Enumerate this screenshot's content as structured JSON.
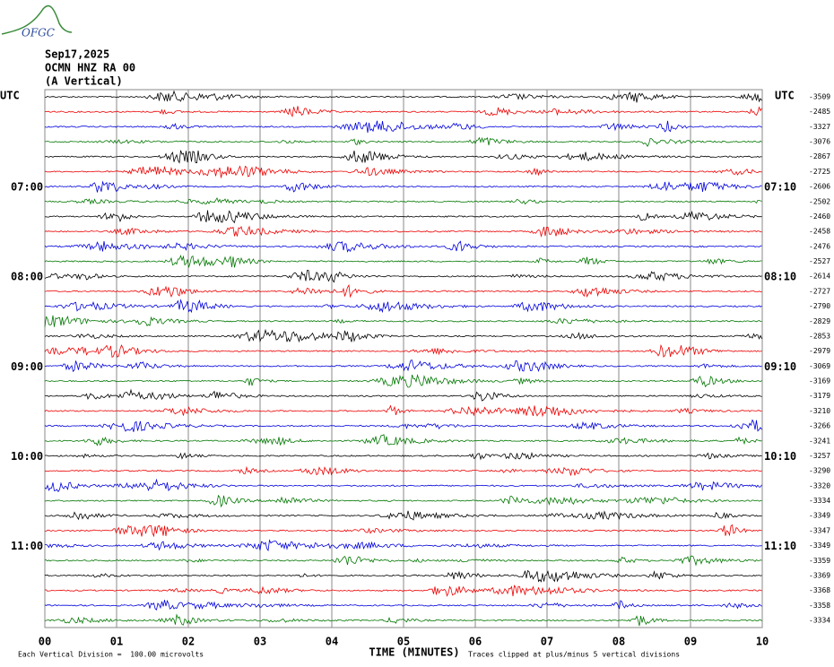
{
  "logo": "OFGC",
  "header": {
    "date": "Sep17,2025",
    "station": "OCMN HNZ RA 00",
    "component": "(A Vertical)"
  },
  "left_axis": {
    "title": "UTC",
    "labels": [
      "07:00",
      "08:00",
      "09:00",
      "10:00",
      "11:00"
    ]
  },
  "right_axis": {
    "title": "UTC",
    "labels": [
      "07:10",
      "08:10",
      "09:10",
      "10:10",
      "11:10"
    ]
  },
  "row_offsets": [
    -3509,
    -2485,
    -3327,
    -3076,
    -2867,
    -2725,
    -2606,
    -2502,
    -2460,
    -2458,
    -2476,
    -2527,
    -2614,
    -2727,
    -2790,
    -2829,
    -2853,
    -2979,
    -3069,
    -3169,
    -3179,
    -3210,
    -3266,
    -3241,
    -3257,
    -3290,
    -3320,
    -3334,
    -3349,
    -3347,
    -3349,
    -3359,
    -3369,
    -3368,
    -3358,
    -3334
  ],
  "x_axis": {
    "ticks": [
      "00",
      "01",
      "02",
      "03",
      "04",
      "05",
      "06",
      "07",
      "08",
      "09",
      "10"
    ],
    "title": "TIME (MINUTES)"
  },
  "footer": {
    "scale": "Each Vertical Division =  100.00 microvolts",
    "clip": "Traces clipped at plus/minus 5 vertical divisions"
  }
}
